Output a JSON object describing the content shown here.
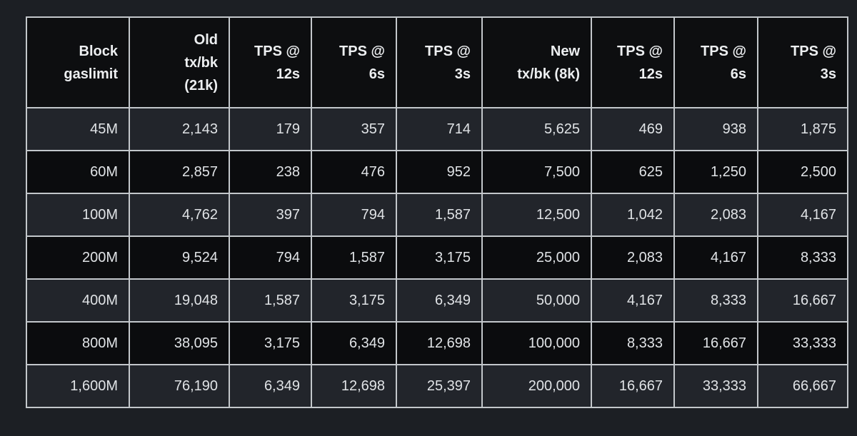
{
  "page": {
    "background_color": "#1c1f24",
    "colors": {
      "border": "#c3c7cb",
      "header_bg": "#0d0e10",
      "row_dark_bg": "#0b0c0e",
      "row_light_bg": "#22252b",
      "header_text": "#edeff1",
      "body_text": "#e0e3e6"
    }
  },
  "chart_data": {
    "type": "table",
    "columns": [
      "Block gaslimit",
      "Old tx/bk (21k)",
      "TPS @ 12s",
      "TPS @ 6s",
      "TPS @ 3s",
      "New tx/bk (8k)",
      "TPS @ 12s",
      "TPS @ 6s",
      "TPS @ 3s"
    ],
    "rows": [
      [
        "45M",
        "2,143",
        "179",
        "357",
        "714",
        "5,625",
        "469",
        "938",
        "1,875"
      ],
      [
        "60M",
        "2,857",
        "238",
        "476",
        "952",
        "7,500",
        "625",
        "1,250",
        "2,500"
      ],
      [
        "100M",
        "4,762",
        "397",
        "794",
        "1,587",
        "12,500",
        "1,042",
        "2,083",
        "4,167"
      ],
      [
        "200M",
        "9,524",
        "794",
        "1,587",
        "3,175",
        "25,000",
        "2,083",
        "4,167",
        "8,333"
      ],
      [
        "400M",
        "19,048",
        "1,587",
        "3,175",
        "6,349",
        "50,000",
        "4,167",
        "8,333",
        "16,667"
      ],
      [
        "800M",
        "38,095",
        "3,175",
        "6,349",
        "12,698",
        "100,000",
        "8,333",
        "16,667",
        "33,333"
      ],
      [
        "1,600M",
        "76,190",
        "6,349",
        "12,698",
        "25,397",
        "200,000",
        "16,667",
        "33,333",
        "66,667"
      ]
    ]
  },
  "table": {
    "header_display": [
      "Block\ngaslimit",
      "Old\ntx/bk\n(21k)",
      "TPS @\n12s",
      "TPS @\n6s",
      "TPS @\n3s",
      "New\ntx/bk (8k)",
      "TPS @\n12s",
      "TPS @\n6s",
      "TPS @\n3s"
    ]
  }
}
